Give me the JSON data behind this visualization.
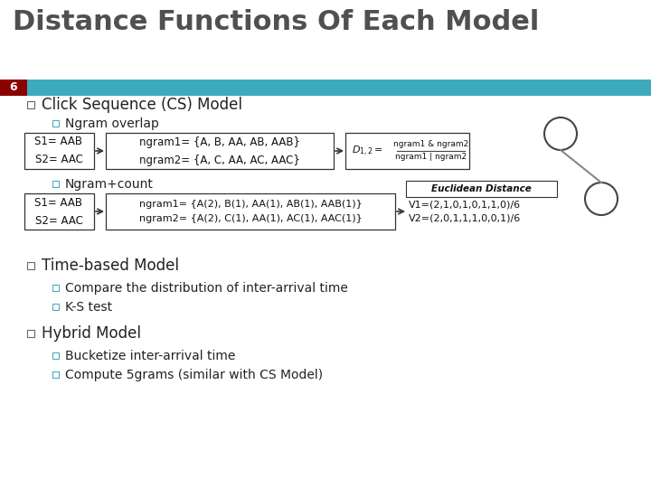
{
  "title": "Distance Functions Of Each Model",
  "slide_number": "6",
  "slide_bar_color": "#3EAABE",
  "slide_number_bg": "#8B0000",
  "background_color": "#FFFFFF",
  "title_color": "#505050",
  "title_fontsize": 22,
  "bullet1": "Click Sequence (CS) Model",
  "sub1a": "Ngram overlap",
  "box1_left": "S1= AAB\nS2= AAC",
  "box1_mid": "ngram1= {A, B, AA, AB, AAB}\nngram2= {A, C, AA, AC, AAC}",
  "sub1b": "Ngram+count",
  "box2_left": "S1= AAB\nS2= AAC",
  "box2_mid": "ngram1= {A(2), B(1), AA(1), AB(1), AAB(1)}\nngram2= {A(2), C(1), AA(1), AC(1), AAC(1)}",
  "euclidean_label": "Euclidean Distance",
  "box2_right": "V1=(2,1,0,1,0,1,1,0)/6\nV2=(2,0,1,1,1,0,0,1)/6",
  "bullet2": "Time-based Model",
  "sub2a": "Compare the distribution of inter-arrival time",
  "sub2b": "K-S test",
  "bullet3": "Hybrid Model",
  "sub3a": "Bucketize inter-arrival time",
  "sub3b": "Compute 5grams (similar with CS Model)"
}
